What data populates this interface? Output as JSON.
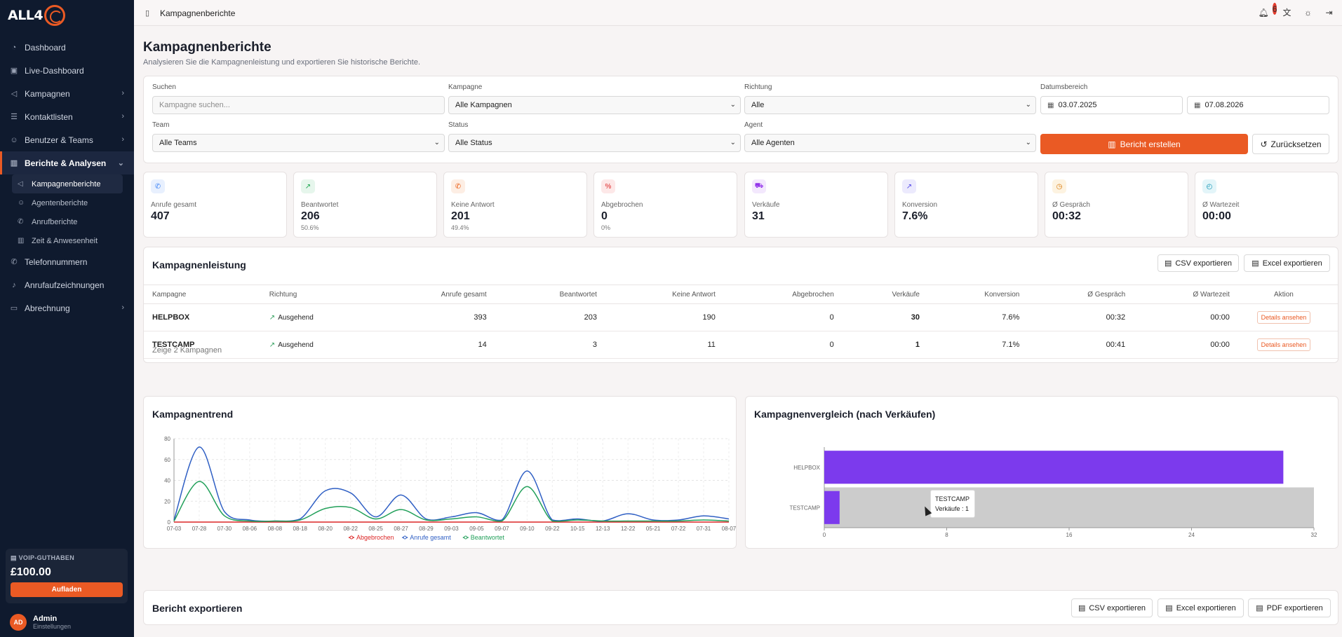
{
  "app": {
    "logo_text": "ALL4"
  },
  "sidebar": {
    "items": [
      {
        "label": "Dashboard"
      },
      {
        "label": "Live-Dashboard"
      },
      {
        "label": "Kampagnen"
      },
      {
        "label": "Kontaktlisten"
      },
      {
        "label": "Benutzer & Teams"
      },
      {
        "label": "Berichte & Analysen"
      },
      {
        "label": "Telefonnummern"
      },
      {
        "label": "Anrufaufzeichnungen"
      },
      {
        "label": "Abrechnung"
      }
    ],
    "subitems": [
      {
        "label": "Kampagnenberichte"
      },
      {
        "label": "Agentenberichte"
      },
      {
        "label": "Anrufberichte"
      },
      {
        "label": "Zeit & Anwesenheit"
      }
    ],
    "voip": {
      "label": "VOIP-GUTHABEN",
      "amount": "£100.00",
      "button": "Aufladen"
    },
    "user": {
      "initials": "AD",
      "name": "Admin",
      "sub": "Einstellungen"
    }
  },
  "topbar": {
    "breadcrumb": "Kampagnenberichte",
    "notifications": "6"
  },
  "page": {
    "title": "Kampagnenberichte",
    "subtitle": "Analysieren Sie die Kampagnenleistung und exportieren Sie historische Berichte."
  },
  "filters": {
    "search_label": "Suchen",
    "search_placeholder": "Kampagne suchen...",
    "campaign_label": "Kampagne",
    "campaign_value": "Alle Kampagnen",
    "direction_label": "Richtung",
    "direction_value": "Alle",
    "date_label": "Datumsbereich",
    "date_from": "03.07.2025",
    "date_to": "07.08.2026",
    "team_label": "Team",
    "team_value": "Alle Teams",
    "status_label": "Status",
    "status_value": "Alle Status",
    "agent_label": "Agent",
    "agent_value": "Alle Agenten",
    "create_button": "Bericht erstellen",
    "reset_button": "Zurücksetzen"
  },
  "stats": [
    {
      "label": "Anrufe gesamt",
      "value": "407",
      "sub": "",
      "icon": "phone-icon",
      "color": "#3b82f6",
      "bg": "#e8f0fe"
    },
    {
      "label": "Beantwortet",
      "value": "206",
      "sub": "50.6%",
      "icon": "trend-up-icon",
      "color": "#16a34a",
      "bg": "#e6f6ec"
    },
    {
      "label": "Keine Antwort",
      "value": "201",
      "sub": "49.4%",
      "icon": "phone-missed-icon",
      "color": "#ea580c",
      "bg": "#fdeee4"
    },
    {
      "label": "Abgebrochen",
      "value": "0",
      "sub": "0%",
      "icon": "percent-icon",
      "color": "#dc2626",
      "bg": "#fde8e8"
    },
    {
      "label": "Verkäufe",
      "value": "31",
      "sub": "",
      "icon": "cart-icon",
      "color": "#9333ea",
      "bg": "#f3e8fd"
    },
    {
      "label": "Konversion",
      "value": "7.6%",
      "sub": "",
      "icon": "chart-up-icon",
      "color": "#4f46e5",
      "bg": "#eceafd"
    },
    {
      "label": "Ø Gespräch",
      "value": "00:32",
      "sub": "",
      "icon": "timer-icon",
      "color": "#d97706",
      "bg": "#fdf3e1"
    },
    {
      "label": "Ø Wartezeit",
      "value": "00:00",
      "sub": "",
      "icon": "clock-icon",
      "color": "#0891b2",
      "bg": "#e3f5f9"
    }
  ],
  "performance": {
    "title": "Kampagnenleistung",
    "csv_button": "CSV exportieren",
    "excel_button": "Excel exportieren",
    "columns": [
      "Kampagne",
      "Richtung",
      "Anrufe gesamt",
      "Beantwortet",
      "Keine Antwort",
      "Abgebrochen",
      "Verkäufe",
      "Konversion",
      "Ø Gespräch",
      "Ø Wartezeit",
      "Aktion"
    ],
    "rows": [
      {
        "campaign": "HELPBOX",
        "direction": "Ausgehend",
        "total": "393",
        "answered": "203",
        "no_answer": "190",
        "aborted": "0",
        "sales": "30",
        "conversion": "7.6%",
        "talk": "00:32",
        "wait": "00:00",
        "action": "Details ansehen"
      },
      {
        "campaign": "TESTCAMP",
        "direction": "Ausgehend",
        "total": "14",
        "answered": "3",
        "no_answer": "11",
        "aborted": "0",
        "sales": "1",
        "conversion": "7.1%",
        "talk": "00:41",
        "wait": "00:00",
        "action": "Details ansehen"
      }
    ],
    "footer": "Zeige 2 Kampagnen"
  },
  "trend": {
    "title": "Kampagnentrend"
  },
  "compare": {
    "title": "Kampagnenvergleich (nach Verkäufen)",
    "tooltip_title": "TESTCAMP",
    "tooltip_value": "Verkäufe : 1"
  },
  "export": {
    "title": "Bericht exportieren",
    "csv_button": "CSV exportieren",
    "excel_button": "Excel exportieren",
    "pdf_button": "PDF exportieren"
  },
  "chart_data": [
    {
      "type": "line",
      "x": [
        "07-03",
        "07-28",
        "07-30",
        "08-06",
        "08-08",
        "08-18",
        "08-20",
        "08-22",
        "08-25",
        "08-27",
        "08-29",
        "09-03",
        "09-05",
        "09-07",
        "09-10",
        "09-22",
        "10-15",
        "12-13",
        "12-22",
        "05-21",
        "07-22",
        "07-31",
        "08-07"
      ],
      "ylim": [
        0,
        80
      ],
      "yticks": [
        0,
        20,
        40,
        60,
        80
      ],
      "series": [
        {
          "name": "Abgebrochen",
          "color": "#dc2626",
          "values": [
            0,
            0,
            0,
            0,
            0,
            0,
            0,
            0,
            0,
            0,
            0,
            0,
            0,
            0,
            0,
            0,
            0,
            0,
            0,
            0,
            0,
            0,
            0
          ]
        },
        {
          "name": "Anrufe gesamt",
          "color": "#2f5fc4",
          "values": [
            2,
            72,
            10,
            2,
            1,
            3,
            30,
            28,
            5,
            26,
            3,
            5,
            9,
            2,
            49,
            2,
            3,
            1,
            8,
            2,
            2,
            6,
            3
          ]
        },
        {
          "name": "Beantwortet",
          "color": "#22a05a",
          "values": [
            1,
            39,
            6,
            1,
            1,
            2,
            13,
            14,
            3,
            12,
            2,
            3,
            5,
            1,
            34,
            1,
            2,
            1,
            1,
            1,
            1,
            2,
            1
          ]
        }
      ]
    },
    {
      "type": "bar",
      "orientation": "horizontal",
      "categories": [
        "HELPBOX",
        "TESTCAMP"
      ],
      "values": [
        30,
        1
      ],
      "color": "#7c3aed",
      "xlim": [
        0,
        32
      ],
      "xticks": [
        0,
        8,
        16,
        24,
        32
      ]
    }
  ]
}
